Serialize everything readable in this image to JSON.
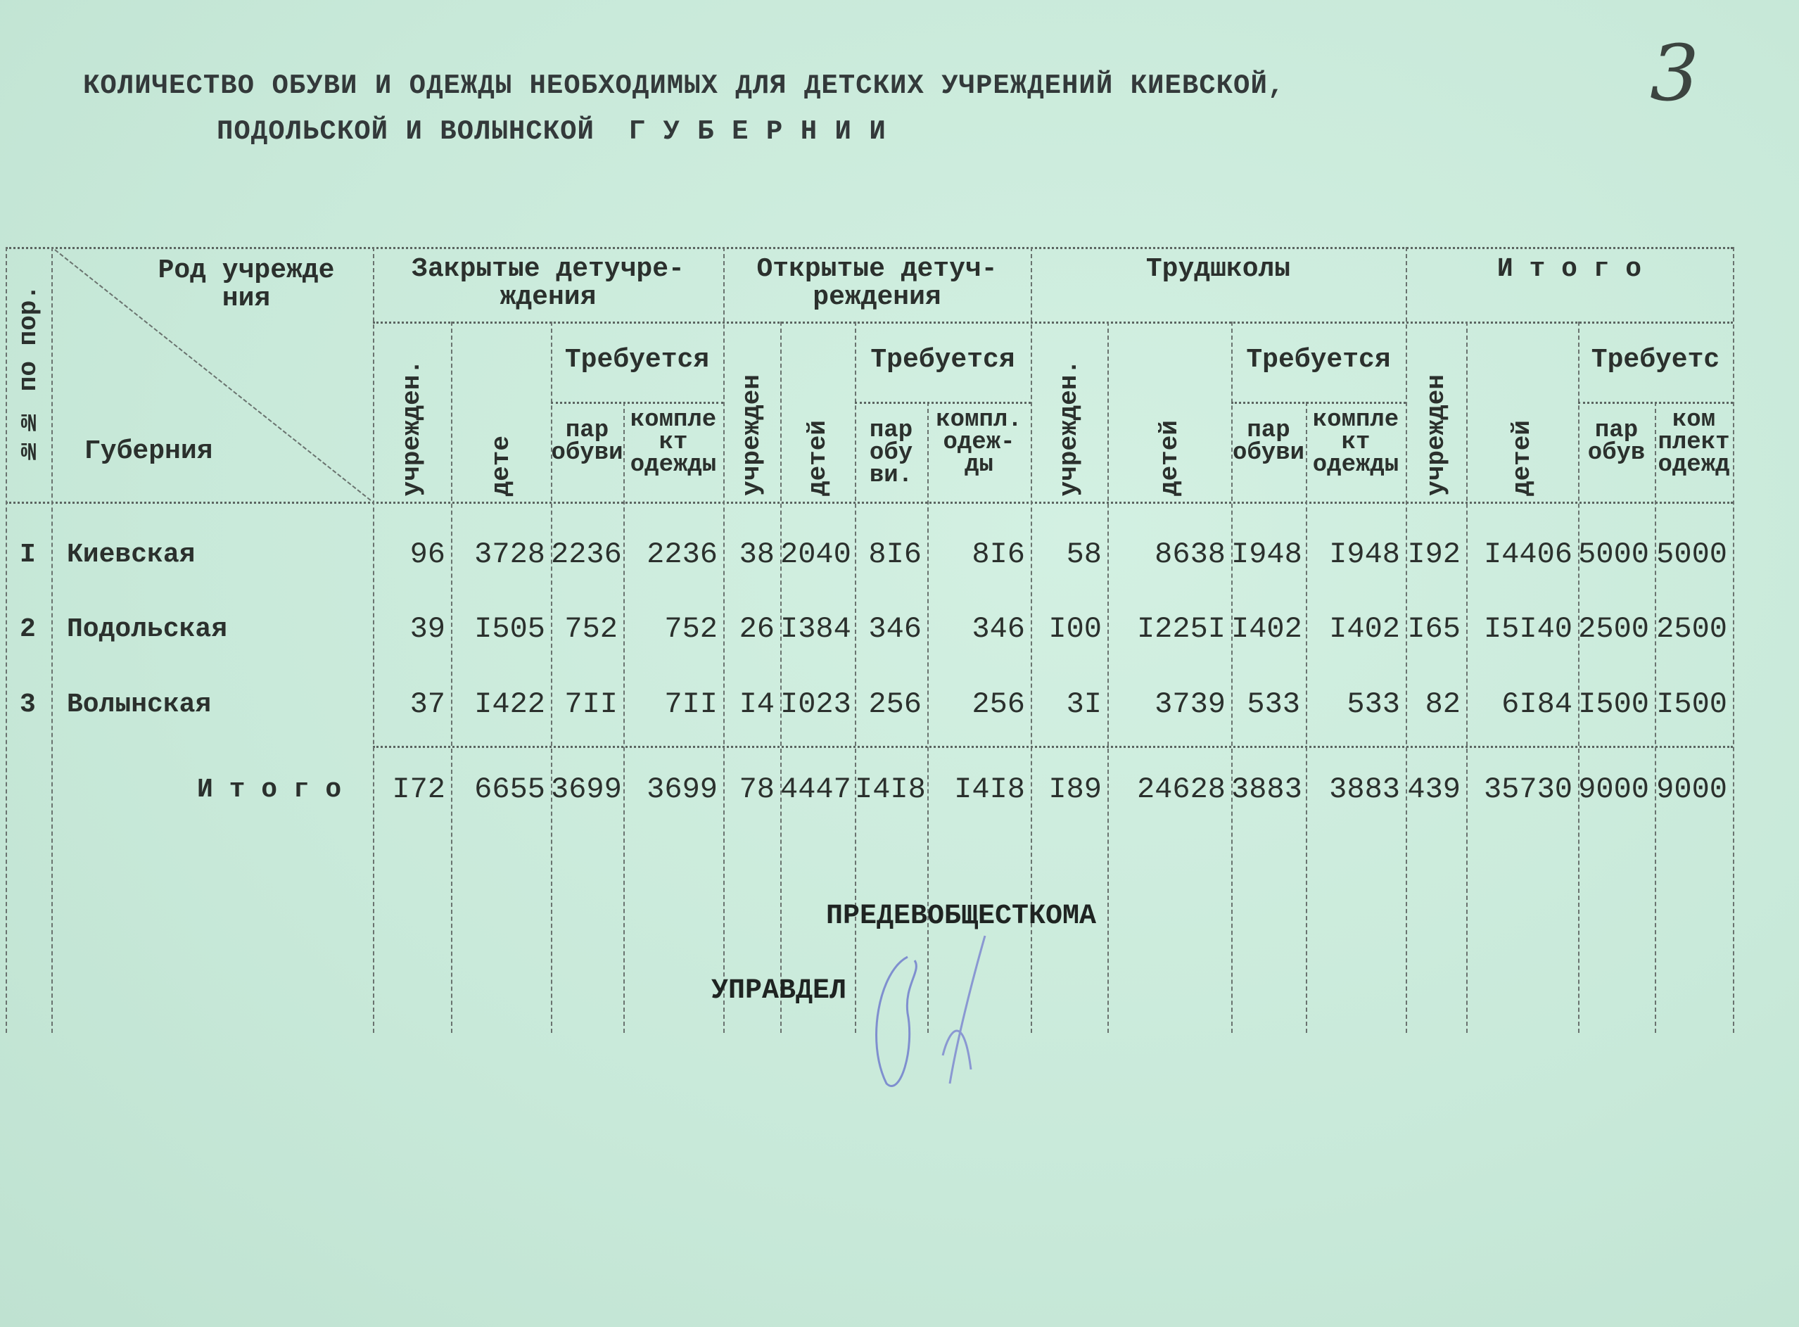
{
  "title": {
    "line1": "КОЛИЧЕСТВО ОБУВИ И ОДЕЖДЫ НЕОБХОДИМЫХ ДЛЯ ДЕТСКИХ УЧРЕЖДЕНИЙ КИЕВСКОЙ,",
    "line2": "ПОДОЛЬСКОЙ И ВОЛЫНСКОЙ  Г У Б Е Р Н И И"
  },
  "page_number": "3",
  "header": {
    "number_col": "№№ по пор.",
    "corner_top": "Род учрежде\nния",
    "corner_bottom": "Губерния",
    "groups": [
      {
        "title": "Закрытые детучре-\nждения",
        "institutions": "учрежден.",
        "children": "дете",
        "required": "Требуется",
        "pairs": "пар\nобуви",
        "sets": "компле\nкт\nодежды"
      },
      {
        "title": "Открытые детуч-\nреждения",
        "institutions": "учрежден",
        "children": "детей",
        "required": "Требуется",
        "pairs": "пар\nобу\nви.",
        "sets": "компл.\nодеж-\nды"
      },
      {
        "title": "Трудшколы",
        "institutions": "учрежден.",
        "children": "детей",
        "required": "Требуется",
        "pairs": "пар\nобуви",
        "sets": "компле\nкт\nодежды"
      },
      {
        "title": "И т о г о",
        "institutions": "учрежден",
        "children": "детей",
        "required": "Требуетс",
        "pairs": "пар\nобув",
        "sets": "ком\nплект\nодежд"
      }
    ]
  },
  "rows": [
    {
      "num": "I",
      "name": "Киевская",
      "values": [
        "96",
        "3728",
        "2236",
        "2236",
        "38",
        "2040",
        "8I6",
        "8I6",
        "58",
        "8638",
        "I948",
        "I948",
        "I92",
        "I4406",
        "5000",
        "5000"
      ]
    },
    {
      "num": "2",
      "name": "Подольская",
      "values": [
        "39",
        "I505",
        "752",
        "752",
        "26",
        "I384",
        "346",
        "346",
        "I00",
        "I225I",
        "I402",
        "I402",
        "I65",
        "I5I40",
        "2500",
        "2500"
      ]
    },
    {
      "num": "3",
      "name": "Волынская",
      "values": [
        "37",
        "I422",
        "7II",
        "7II",
        "I4",
        "I023",
        "256",
        "256",
        "3I",
        "3739",
        "533",
        "533",
        "82",
        "6I84",
        "I500",
        "I500"
      ]
    }
  ],
  "total": {
    "label": "И т о г о",
    "values": [
      "I72",
      "6655",
      "3699",
      "3699",
      "78",
      "4447",
      "I4I8",
      "I4I8",
      "I89",
      "24628",
      "3883",
      "3883",
      "439",
      "35730",
      "9000",
      "9000"
    ]
  },
  "footer": {
    "chairman": "ПРЕДЕВОБЩЕСТКОМА",
    "manager": "УПРАВДЕЛ"
  },
  "colors": {
    "paper": "#c8e9d9",
    "ink": "#2b302d",
    "signature": "#7f8fcf"
  }
}
